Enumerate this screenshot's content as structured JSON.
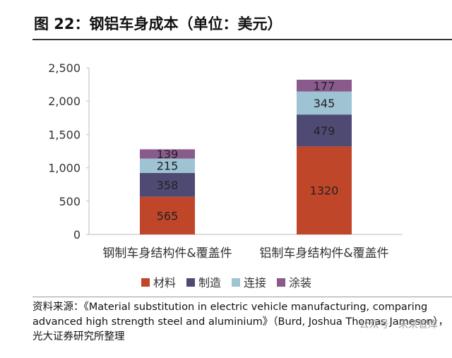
{
  "title": "图 22：钢铝车身成本（单位：美元）",
  "chart_data": {
    "type": "bar",
    "stacked": true,
    "categories": [
      "钢制车身结构件&覆盖件",
      "铝制车身结构件&覆盖件"
    ],
    "series": [
      {
        "name": "材料",
        "color": "#c0462a",
        "values": [
          565,
          1320
        ]
      },
      {
        "name": "制造",
        "color": "#4f4a74",
        "values": [
          358,
          479
        ]
      },
      {
        "name": "连接",
        "color": "#9ec3d3",
        "values": [
          215,
          345
        ]
      },
      {
        "name": "涂装",
        "color": "#8a5a8c",
        "values": [
          139,
          177
        ]
      }
    ],
    "ylim": [
      0,
      2500
    ],
    "yticks": [
      0,
      500,
      1000,
      1500,
      2000,
      2500
    ],
    "ytick_labels": [
      "0",
      "500",
      "1,000",
      "1,500",
      "2,000",
      "2,500"
    ],
    "legend_position": "bottom",
    "grid": false
  },
  "source_lines": [
    "资料来源：《Material substitution in electric vehicle manufacturing, comparing",
    "advanced high strength steel and aluminium》（Burd, Joshua Thomas Jameson），",
    "光大证券研究所整理"
  ],
  "watermark": "公众号 · 未来智库"
}
